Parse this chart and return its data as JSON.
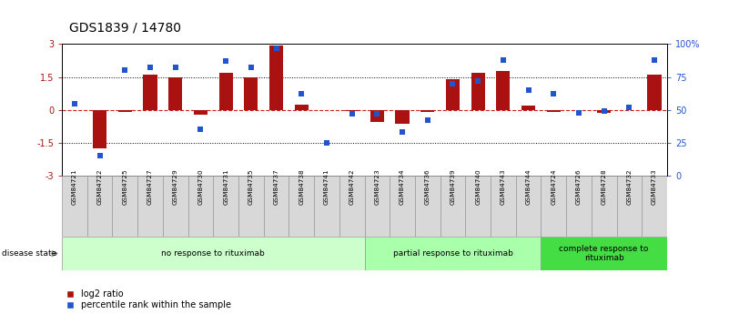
{
  "title": "GDS1839 / 14780",
  "samples": [
    "GSM84721",
    "GSM84722",
    "GSM84725",
    "GSM84727",
    "GSM84729",
    "GSM84730",
    "GSM84731",
    "GSM84735",
    "GSM84737",
    "GSM84738",
    "GSM84741",
    "GSM84742",
    "GSM84723",
    "GSM84734",
    "GSM84736",
    "GSM84739",
    "GSM84740",
    "GSM84743",
    "GSM84744",
    "GSM84724",
    "GSM84726",
    "GSM84728",
    "GSM84732",
    "GSM84733"
  ],
  "log2_ratio": [
    0.0,
    -1.75,
    -0.1,
    1.6,
    1.5,
    -0.2,
    1.7,
    1.5,
    2.95,
    0.25,
    0.0,
    -0.05,
    -0.55,
    -0.65,
    -0.1,
    1.4,
    1.7,
    1.75,
    0.2,
    -0.1,
    0.0,
    -0.12,
    0.0,
    1.6
  ],
  "percentile": [
    55,
    15,
    80,
    82,
    82,
    35,
    87,
    82,
    97,
    62,
    25,
    47,
    47,
    33,
    42,
    70,
    72,
    88,
    65,
    62,
    48,
    49,
    52,
    88
  ],
  "groups": [
    {
      "label": "no response to rituximab",
      "start": 0,
      "end": 12,
      "color": "#ccffcc"
    },
    {
      "label": "partial response to rituximab",
      "start": 12,
      "end": 19,
      "color": "#aaffaa"
    },
    {
      "label": "complete response to\nrituximab",
      "start": 19,
      "end": 24,
      "color": "#44dd44"
    }
  ],
  "ylim": [
    -3,
    3
  ],
  "yticks_left": [
    -3,
    -1.5,
    0,
    1.5,
    3
  ],
  "yticks_right": [
    0,
    25,
    50,
    75,
    100
  ],
  "bar_color": "#aa1111",
  "dot_color": "#2255cc",
  "zero_line_color": "#cc2222",
  "background_color": "#ffffff",
  "title_fontsize": 10,
  "tick_fontsize": 7,
  "label_fontsize": 7
}
